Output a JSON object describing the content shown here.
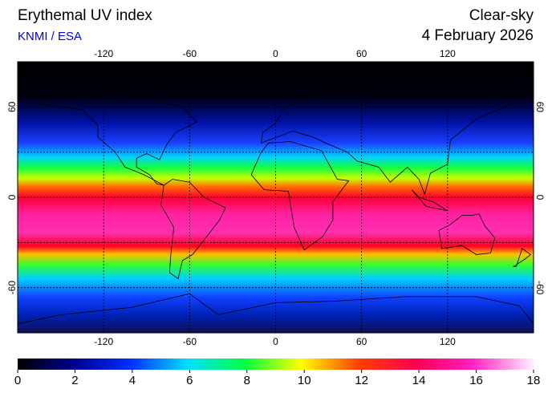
{
  "header": {
    "title": "Erythemal UV index",
    "source": "KNMI / ESA",
    "condition": "Clear-sky",
    "date": "4 February 2026"
  },
  "map": {
    "lon_ticks": [
      -120,
      -60,
      0,
      60,
      120
    ],
    "lat_ticks": [
      60,
      0,
      -60
    ]
  },
  "colorbar": {
    "ticks": [
      0,
      2,
      4,
      6,
      8,
      10,
      12,
      14,
      16,
      18
    ]
  }
}
